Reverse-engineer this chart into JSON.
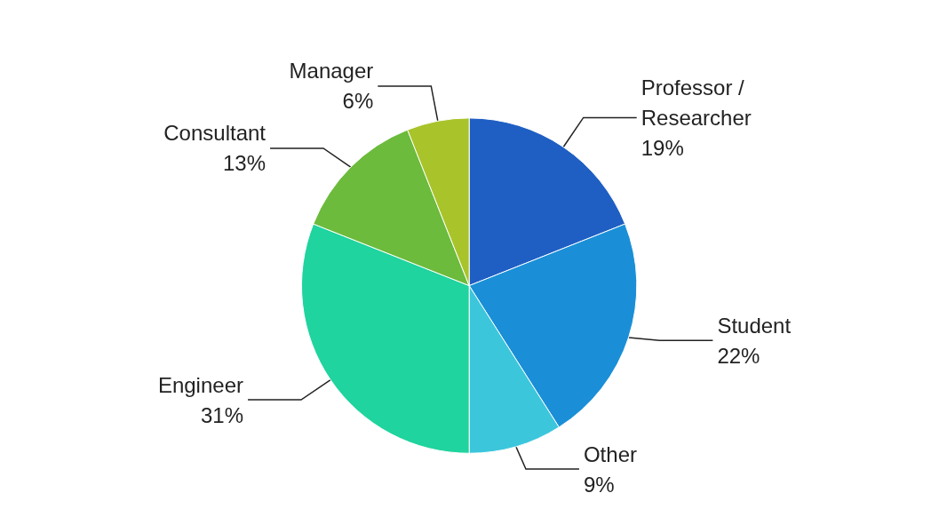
{
  "chart_data": {
    "type": "pie",
    "categories": [
      "Professor / Researcher",
      "Student",
      "Other",
      "Engineer",
      "Consultant",
      "Manager"
    ],
    "values": [
      19,
      22,
      9,
      31,
      13,
      6
    ],
    "value_labels": [
      "19%",
      "22%",
      "9%",
      "31%",
      "13%",
      "6%"
    ],
    "colors": [
      "#1f5fc4",
      "#1a8fd8",
      "#3cc6dc",
      "#1fd49e",
      "#6cbb3c",
      "#a8c42a"
    ],
    "legend": false
  }
}
